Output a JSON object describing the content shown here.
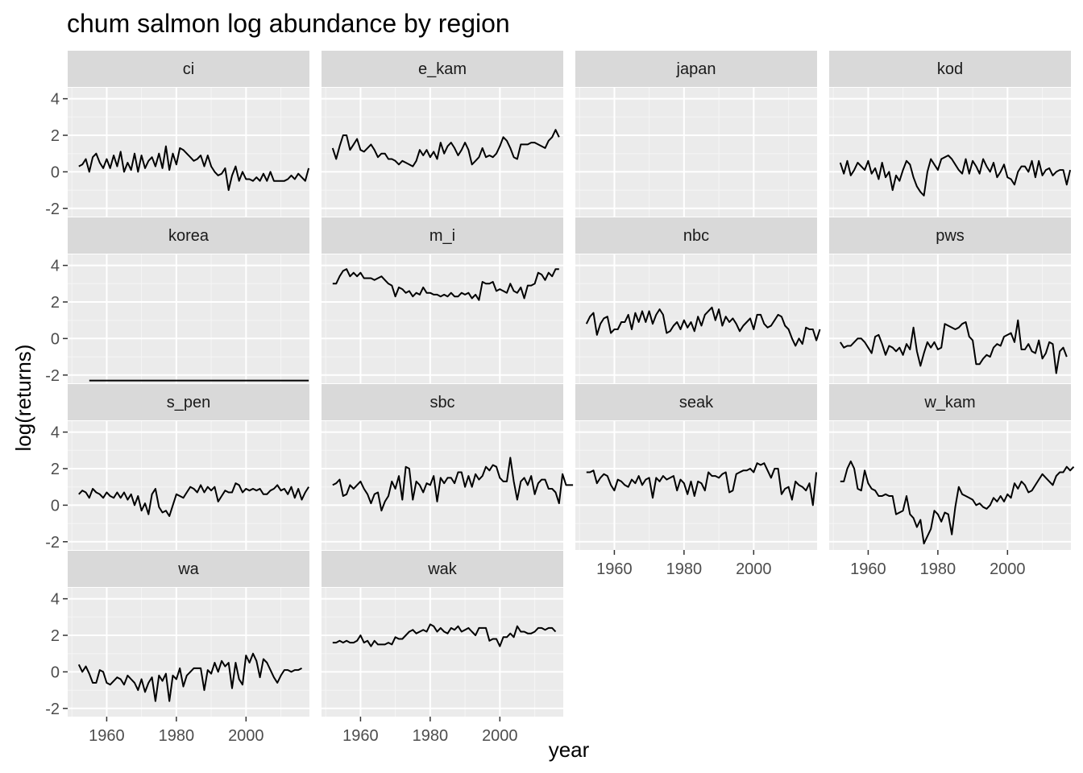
{
  "chart_data": {
    "type": "line",
    "title": "chum salmon log abundance by region",
    "xlabel": "year",
    "ylabel": "log(returns)",
    "xlim": [
      1948.8,
      2018.2
    ],
    "ylim": [
      -2.45,
      4.6
    ],
    "xticks": [
      1960,
      1980,
      2000
    ],
    "yticks": [
      -2,
      0,
      2,
      4
    ],
    "x_minor_ticks": [
      1950,
      1970,
      1990,
      2010
    ],
    "y_minor_ticks": [
      -1,
      1,
      3
    ],
    "facet_layout": "4 columns x 4 rows, shared axes",
    "grid": true,
    "legend": "none",
    "colors": {
      "panel_background": "#ebebeb",
      "strip_background": "#d9d9d9",
      "grid_major": "#ffffff",
      "grid_minor": "#f5f5f5",
      "line": "#000000",
      "tick_label": "#4d4d4d"
    },
    "panels": [
      {
        "region": "ci",
        "start_year": 1952,
        "values": [
          0.3,
          0.4,
          0.7,
          0.0,
          0.8,
          1.0,
          0.5,
          0.2,
          0.7,
          0.2,
          0.9,
          0.3,
          1.1,
          0.0,
          0.5,
          0.1,
          1.0,
          0.0,
          0.9,
          0.2,
          0.6,
          0.8,
          0.3,
          1.0,
          0.2,
          1.4,
          0.1,
          1.0,
          0.4,
          1.3,
          1.2,
          1.0,
          0.8,
          0.6,
          0.7,
          0.9,
          0.3,
          0.9,
          0.3,
          0.0,
          -0.2,
          -0.1,
          0.2,
          -1.0,
          -0.2,
          0.3,
          -0.5,
          0.0,
          -0.4,
          -0.4,
          -0.5,
          -0.3,
          -0.5,
          -0.1,
          -0.5,
          0.0,
          -0.5,
          -0.5,
          -0.5,
          -0.5,
          -0.4,
          -0.2,
          -0.4,
          -0.1,
          -0.3,
          -0.5,
          0.2
        ]
      },
      {
        "region": "e_kam",
        "start_year": 1952,
        "values": [
          1.3,
          0.7,
          1.4,
          2.0,
          2.0,
          1.2,
          1.5,
          1.8,
          1.2,
          1.1,
          1.3,
          1.5,
          1.2,
          0.8,
          1.0,
          1.0,
          0.7,
          0.7,
          0.6,
          0.4,
          0.6,
          0.5,
          0.4,
          0.3,
          0.6,
          1.2,
          0.9,
          1.2,
          0.8,
          1.1,
          0.7,
          1.6,
          1.0,
          1.4,
          1.6,
          1.3,
          0.9,
          1.2,
          1.6,
          1.2,
          0.4,
          0.6,
          0.8,
          1.3,
          0.8,
          0.9,
          0.8,
          1.0,
          1.4,
          1.9,
          1.7,
          1.3,
          0.8,
          0.7,
          1.5,
          1.5,
          1.5,
          1.6,
          1.6,
          1.5,
          1.4,
          1.3,
          1.7,
          1.9,
          2.3,
          1.9
        ]
      },
      {
        "region": "japan",
        "start_year": 1952,
        "values": []
      },
      {
        "region": "kod",
        "start_year": 1952,
        "values": [
          0.5,
          -0.1,
          0.6,
          -0.2,
          0.1,
          0.5,
          0.3,
          0.1,
          0.6,
          -0.1,
          0.2,
          -0.4,
          0.5,
          -0.3,
          0.0,
          -1.0,
          -0.2,
          -0.5,
          0.1,
          0.6,
          0.4,
          -0.3,
          -0.8,
          -1.1,
          -1.3,
          0.0,
          0.7,
          0.4,
          0.1,
          0.7,
          0.8,
          0.9,
          0.7,
          0.4,
          0.1,
          -0.1,
          0.7,
          -0.1,
          0.6,
          0.3,
          -0.1,
          0.7,
          0.3,
          0.0,
          0.5,
          -0.3,
          0.0,
          0.4,
          -0.3,
          -0.4,
          -0.7,
          0.0,
          0.3,
          0.3,
          0.0,
          0.6,
          -0.3,
          0.6,
          -0.2,
          0.1,
          0.2,
          -0.2,
          0.0,
          0.1,
          0.1,
          -0.7,
          0.1
        ]
      },
      {
        "region": "korea",
        "start_year": 1955,
        "values": [
          -2.3,
          -2.3,
          -2.3,
          -2.3,
          -2.3,
          -2.3,
          -2.3,
          -2.3,
          -2.3,
          -2.3,
          -2.3,
          -2.3,
          -2.3,
          -2.3,
          -2.3,
          -2.3,
          -2.3,
          -2.3,
          -2.3,
          -2.3,
          -2.3,
          -2.3,
          -2.3,
          -2.3,
          -2.3,
          -2.3,
          -2.3,
          -2.3,
          -2.3,
          -2.3,
          -2.3,
          -2.3,
          -2.3,
          -2.3,
          -2.3,
          -2.3,
          -2.3,
          -2.3,
          -2.3,
          -2.3,
          -2.3,
          -2.3,
          -2.3,
          -2.3,
          -2.3,
          -2.3,
          -2.3,
          -2.3,
          -2.3,
          -2.3,
          -2.3,
          -2.3,
          -2.3,
          -2.3,
          -2.3,
          -2.3,
          -2.3,
          -2.3,
          -2.3,
          -2.3,
          -2.3,
          -2.3,
          -2.3,
          -2.3
        ]
      },
      {
        "region": "m_i",
        "start_year": 1952,
        "values": [
          3.0,
          3.0,
          3.4,
          3.7,
          3.8,
          3.4,
          3.6,
          3.4,
          3.6,
          3.3,
          3.3,
          3.3,
          3.2,
          3.3,
          3.4,
          3.2,
          3.0,
          2.9,
          2.3,
          2.8,
          2.7,
          2.5,
          2.6,
          2.3,
          2.5,
          2.4,
          2.8,
          2.5,
          2.5,
          2.4,
          2.4,
          2.3,
          2.4,
          2.3,
          2.5,
          2.3,
          2.3,
          2.5,
          2.4,
          2.5,
          2.2,
          2.4,
          2.1,
          3.1,
          3.0,
          3.0,
          3.1,
          2.6,
          2.7,
          2.6,
          2.5,
          3.0,
          2.6,
          2.5,
          2.8,
          2.2,
          2.9,
          2.9,
          3.0,
          3.6,
          3.5,
          3.2,
          3.6,
          3.4,
          3.8,
          3.8
        ]
      },
      {
        "region": "nbc",
        "start_year": 1952,
        "values": [
          0.8,
          1.2,
          1.4,
          0.2,
          0.8,
          1.1,
          1.2,
          0.3,
          0.5,
          0.5,
          0.9,
          0.9,
          1.3,
          0.5,
          1.4,
          0.9,
          1.5,
          0.9,
          1.5,
          0.8,
          1.3,
          1.6,
          1.3,
          0.3,
          0.4,
          0.7,
          0.9,
          0.5,
          1.0,
          0.6,
          0.9,
          0.4,
          1.2,
          0.7,
          1.3,
          1.5,
          1.7,
          1.0,
          1.6,
          0.7,
          1.2,
          0.9,
          1.1,
          0.8,
          0.4,
          0.7,
          0.9,
          1.1,
          0.5,
          1.3,
          1.3,
          0.8,
          0.6,
          0.7,
          1.0,
          1.3,
          1.2,
          0.7,
          0.5,
          0.0,
          -0.4,
          0.0,
          -0.3,
          0.6,
          0.5,
          0.5,
          -0.1,
          0.5
        ]
      },
      {
        "region": "pws",
        "start_year": 1952,
        "values": [
          -0.2,
          -0.5,
          -0.4,
          -0.4,
          -0.2,
          0.0,
          0.0,
          -0.2,
          -0.5,
          -0.8,
          0.1,
          0.2,
          -0.3,
          -0.9,
          -0.4,
          -0.5,
          -0.7,
          -0.5,
          -0.9,
          -0.3,
          -0.6,
          0.6,
          -0.7,
          -1.5,
          -0.8,
          -0.2,
          -0.5,
          -0.2,
          -0.6,
          -0.5,
          0.8,
          0.7,
          0.6,
          0.5,
          0.6,
          0.8,
          0.9,
          0.1,
          -0.1,
          -1.4,
          -1.4,
          -1.1,
          -0.9,
          -1.0,
          -0.5,
          -0.3,
          -0.4,
          0.1,
          0.2,
          0.3,
          -0.2,
          1.0,
          -0.6,
          -0.6,
          -0.3,
          -0.7,
          -0.8,
          -0.1,
          -1.1,
          -0.8,
          -0.2,
          -0.3,
          -1.9,
          -0.7,
          -0.5,
          -1.0
        ]
      },
      {
        "region": "s_pen",
        "start_year": 1952,
        "values": [
          0.6,
          0.8,
          0.7,
          0.4,
          0.9,
          0.7,
          0.6,
          0.4,
          0.7,
          0.5,
          0.4,
          0.7,
          0.4,
          0.7,
          0.3,
          0.6,
          0.0,
          0.5,
          -0.3,
          0.1,
          -0.5,
          0.6,
          0.9,
          -0.1,
          -0.4,
          -0.3,
          -0.6,
          0.0,
          0.6,
          0.5,
          0.4,
          0.7,
          1.0,
          0.9,
          0.7,
          1.1,
          0.7,
          1.0,
          0.8,
          1.0,
          0.2,
          0.5,
          0.8,
          0.7,
          0.7,
          1.2,
          1.1,
          0.7,
          0.9,
          0.8,
          0.9,
          0.8,
          0.9,
          0.6,
          0.6,
          0.8,
          0.9,
          1.1,
          0.8,
          0.9,
          0.6,
          1.0,
          0.4,
          0.9,
          0.3,
          0.7,
          1.0
        ]
      },
      {
        "region": "sbc",
        "start_year": 1952,
        "values": [
          1.1,
          1.2,
          1.4,
          0.5,
          0.6,
          1.1,
          0.9,
          1.1,
          1.3,
          0.9,
          0.6,
          0.1,
          0.6,
          0.7,
          -0.3,
          0.2,
          0.5,
          1.3,
          0.9,
          1.6,
          0.3,
          2.1,
          2.0,
          0.3,
          1.3,
          1.1,
          0.7,
          1.2,
          1.1,
          1.6,
          0.2,
          1.5,
          1.2,
          1.5,
          1.5,
          1.2,
          1.8,
          1.8,
          1.0,
          1.6,
          1.0,
          1.7,
          1.4,
          1.6,
          2.1,
          1.9,
          2.2,
          2.1,
          1.5,
          1.3,
          1.3,
          2.6,
          1.3,
          0.3,
          1.3,
          1.5,
          1.1,
          1.6,
          0.6,
          1.2,
          1.4,
          1.4,
          0.9,
          0.9,
          0.7,
          0.1,
          1.7,
          1.1,
          1.1,
          1.1
        ]
      },
      {
        "region": "seak",
        "start_year": 1952,
        "values": [
          1.8,
          1.8,
          1.9,
          1.2,
          1.5,
          1.7,
          1.6,
          1.1,
          0.8,
          1.4,
          1.3,
          1.1,
          1.0,
          1.4,
          1.2,
          1.6,
          1.1,
          1.4,
          1.5,
          0.4,
          1.5,
          1.3,
          1.6,
          1.4,
          1.5,
          1.6,
          0.8,
          1.4,
          1.2,
          0.6,
          1.3,
          0.5,
          1.3,
          1.2,
          0.8,
          1.8,
          1.6,
          1.6,
          1.5,
          1.7,
          1.8,
          0.7,
          0.8,
          1.7,
          1.8,
          1.9,
          1.9,
          2.0,
          1.8,
          2.3,
          2.2,
          2.3,
          1.9,
          1.5,
          2.0,
          2.0,
          0.6,
          0.9,
          1.0,
          0.3,
          1.3,
          1.1,
          1.0,
          0.8,
          1.2,
          0.0,
          1.8
        ]
      },
      {
        "region": "w_kam",
        "start_year": 1952,
        "values": [
          1.3,
          1.3,
          2.0,
          2.4,
          2.0,
          0.9,
          0.8,
          1.9,
          1.2,
          0.9,
          0.8,
          0.5,
          0.5,
          0.6,
          0.5,
          0.5,
          -0.5,
          -0.4,
          -0.3,
          0.5,
          -0.5,
          -0.7,
          -1.2,
          -0.8,
          -2.1,
          -1.7,
          -1.3,
          -0.3,
          -0.5,
          -0.9,
          -0.4,
          -0.5,
          -1.6,
          -0.1,
          1.0,
          0.6,
          0.5,
          0.4,
          0.3,
          0.0,
          0.1,
          -0.1,
          -0.2,
          0.0,
          0.4,
          0.2,
          0.5,
          0.2,
          0.6,
          0.4,
          1.2,
          0.9,
          1.3,
          1.1,
          0.7,
          0.8,
          1.1,
          1.4,
          1.7,
          1.5,
          1.3,
          1.1,
          1.6,
          1.8,
          1.8,
          2.1,
          1.9,
          2.1
        ]
      },
      {
        "region": "wa",
        "start_year": 1952,
        "values": [
          0.4,
          0.0,
          0.3,
          -0.1,
          -0.6,
          -0.6,
          0.1,
          0.0,
          -0.6,
          -0.7,
          -0.5,
          -0.3,
          -0.4,
          -0.7,
          -0.2,
          -0.4,
          -0.6,
          -1.0,
          -0.4,
          -1.1,
          -0.6,
          -0.3,
          -1.6,
          -0.2,
          -0.5,
          -0.1,
          -1.6,
          -0.2,
          -0.4,
          0.2,
          -0.8,
          -0.2,
          0.0,
          0.2,
          0.2,
          0.2,
          -1.0,
          0.1,
          -0.1,
          0.5,
          0.0,
          0.6,
          0.3,
          0.5,
          -0.9,
          0.5,
          -0.4,
          -0.7,
          0.9,
          0.5,
          1.0,
          0.6,
          -0.3,
          0.7,
          0.5,
          0.1,
          -0.3,
          -0.6,
          -0.2,
          0.1,
          0.1,
          0.0,
          0.1,
          0.1,
          0.2
        ]
      },
      {
        "region": "wak",
        "start_year": 1952,
        "values": [
          1.6,
          1.6,
          1.7,
          1.6,
          1.7,
          1.6,
          1.6,
          1.7,
          2.0,
          1.6,
          1.7,
          1.4,
          1.7,
          1.5,
          1.5,
          1.5,
          1.6,
          1.5,
          1.9,
          1.8,
          1.8,
          2.0,
          2.2,
          2.3,
          2.1,
          2.2,
          2.3,
          2.2,
          2.6,
          2.5,
          2.2,
          2.4,
          2.2,
          2.1,
          2.4,
          2.3,
          2.5,
          2.2,
          2.3,
          2.4,
          2.2,
          2.0,
          2.4,
          2.4,
          2.4,
          1.7,
          1.8,
          1.8,
          1.4,
          1.9,
          1.9,
          2.1,
          1.9,
          2.5,
          2.2,
          2.2,
          2.1,
          2.1,
          2.2,
          2.4,
          2.4,
          2.3,
          2.4,
          2.4,
          2.2
        ]
      }
    ]
  }
}
